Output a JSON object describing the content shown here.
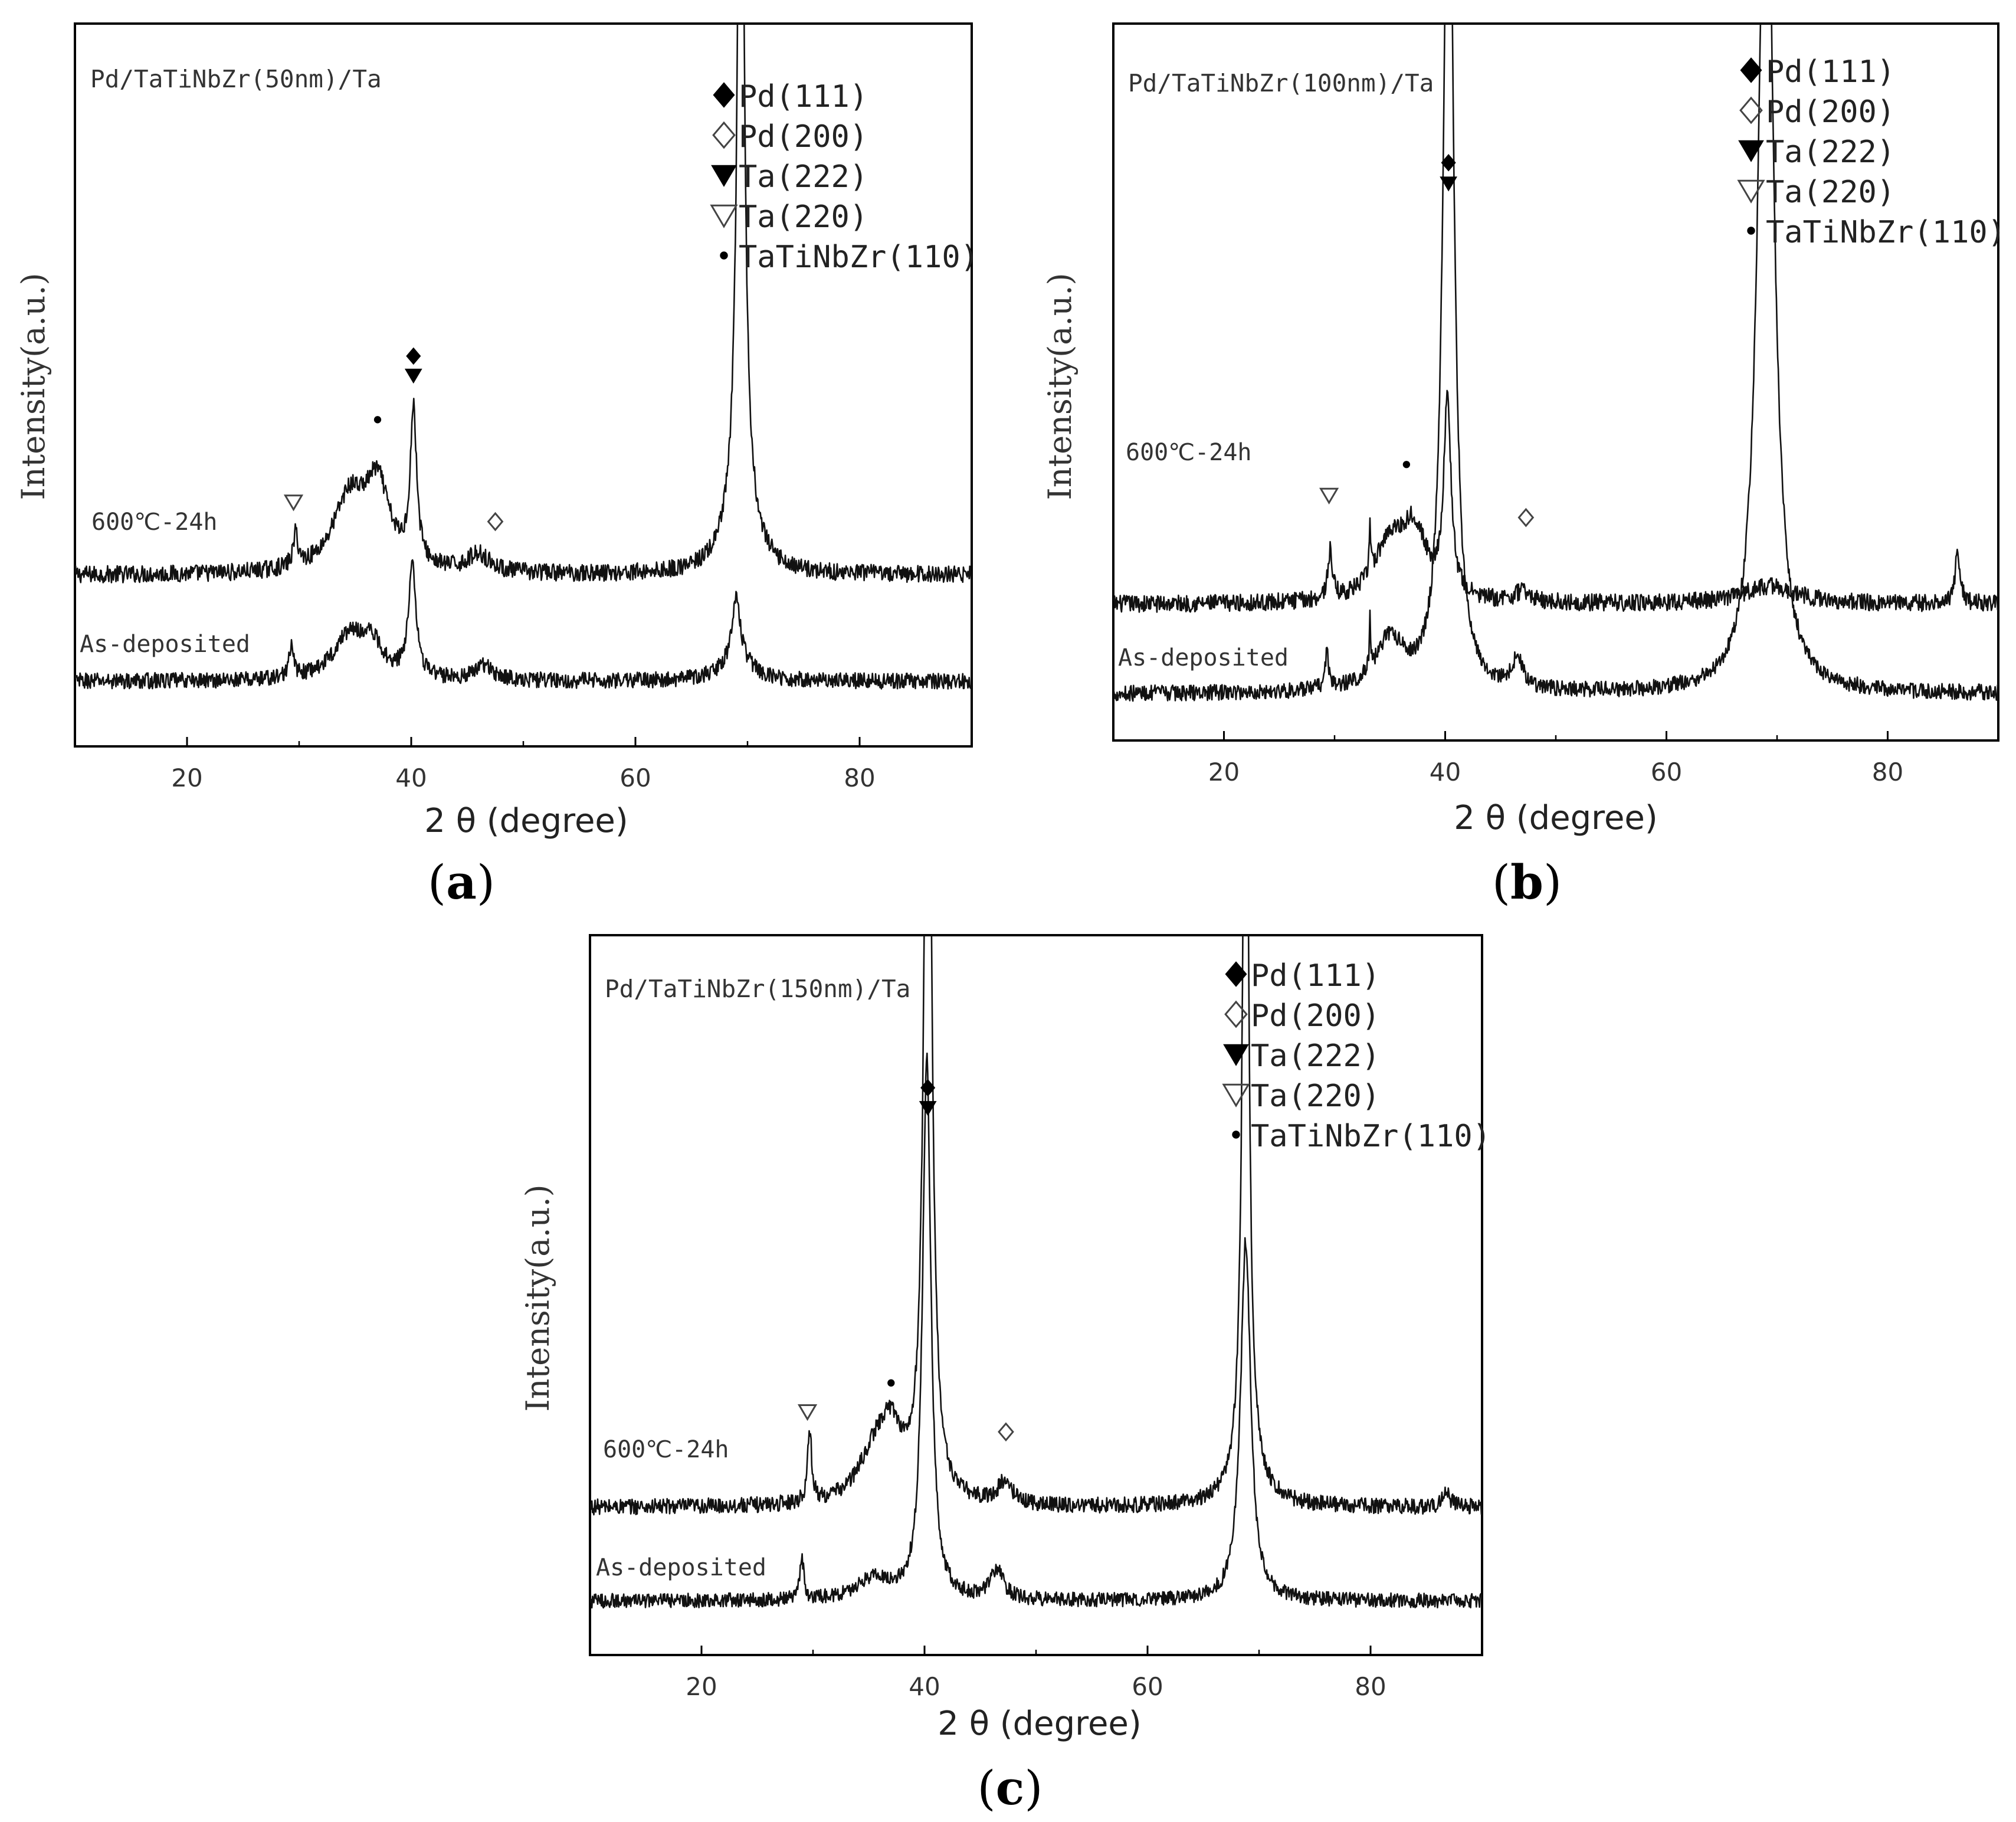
{
  "figure": {
    "legend_entries": [
      {
        "symbol": "filled-diamond",
        "label": "Pd(111)"
      },
      {
        "symbol": "open-diamond",
        "label": "Pd(200)"
      },
      {
        "symbol": "filled-triangle-down",
        "label": "Ta(222)"
      },
      {
        "symbol": "open-triangle-down",
        "label": "Ta(220)"
      },
      {
        "symbol": "dot",
        "label": "TaTiNbZr(110)"
      }
    ]
  },
  "chart_data": [
    {
      "panel": "a",
      "type": "line",
      "caption_letter": "a",
      "title": "Pd/TaTiNbZr(50nm)/Ta",
      "xlabel": "2 θ (degree)",
      "ylabel": "Intensity(a.u.)",
      "xlim": [
        10,
        90
      ],
      "xticks": [
        20,
        40,
        60,
        80
      ],
      "series": [
        {
          "name": "600℃-24h",
          "baseline": 0.237,
          "noise": 0.012,
          "peaks": [
            {
              "x": 29.7,
              "h": 0.045,
              "w": 0.25
            },
            {
              "x": 34.5,
              "h": 0.1,
              "w": 1.8
            },
            {
              "x": 37.0,
              "h": 0.11,
              "w": 1.3
            },
            {
              "x": 40.2,
              "h": 0.21,
              "w": 0.35
            },
            {
              "x": 46.0,
              "h": 0.025,
              "w": 1.2
            },
            {
              "x": 69.4,
              "h": 1.2,
              "w": 0.33
            },
            {
              "x": 69.4,
              "h": 0.1,
              "w": 1.4
            }
          ]
        },
        {
          "name": "As-deposited",
          "baseline": 0.09,
          "noise": 0.011,
          "peaks": [
            {
              "x": 29.3,
              "h": 0.04,
              "w": 0.25
            },
            {
              "x": 34.5,
              "h": 0.06,
              "w": 1.8
            },
            {
              "x": 36.5,
              "h": 0.04,
              "w": 1.2
            },
            {
              "x": 40.1,
              "h": 0.16,
              "w": 0.4
            },
            {
              "x": 46.5,
              "h": 0.02,
              "w": 1.0
            },
            {
              "x": 69.0,
              "h": 0.08,
              "w": 0.35
            },
            {
              "x": 69.0,
              "h": 0.04,
              "w": 1.4
            }
          ]
        }
      ],
      "annotations": [
        {
          "symbol": "open-triangle-down",
          "x": 29.5,
          "y": 0.338
        },
        {
          "symbol": "dot",
          "x": 37.0,
          "y": 0.452
        },
        {
          "symbol": "filled-diamond",
          "x": 40.2,
          "y": 0.54
        },
        {
          "symbol": "filled-triangle-down",
          "x": 40.2,
          "y": 0.513
        },
        {
          "symbol": "open-diamond",
          "x": 47.5,
          "y": 0.311
        }
      ]
    },
    {
      "panel": "b",
      "type": "line",
      "caption_letter": "b",
      "title": "Pd/TaTiNbZr(100nm)/Ta",
      "xlabel": "2 θ (degree)",
      "ylabel": "Intensity(a.u.)",
      "xlim": [
        10,
        90
      ],
      "xticks": [
        20,
        40,
        60,
        80
      ],
      "series": [
        {
          "name": "600℃-24h",
          "baseline": 0.19,
          "noise": 0.012,
          "peaks": [
            {
              "x": 29.6,
              "h": 0.065,
              "w": 0.25
            },
            {
              "x": 33.2,
              "h": 0.08,
              "w": 0.07
            },
            {
              "x": 35.0,
              "h": 0.08,
              "w": 1.7
            },
            {
              "x": 37.2,
              "h": 0.09,
              "w": 1.3
            },
            {
              "x": 40.2,
              "h": 0.27,
              "w": 0.4
            },
            {
              "x": 47.0,
              "h": 0.015,
              "w": 0.8
            },
            {
              "x": 69.3,
              "h": 0.025,
              "w": 3.0
            },
            {
              "x": 86.3,
              "h": 0.065,
              "w": 0.3
            }
          ]
        },
        {
          "name": "As-deposited",
          "baseline": 0.065,
          "noise": 0.011,
          "peaks": [
            {
              "x": 29.3,
              "h": 0.05,
              "w": 0.2
            },
            {
              "x": 33.2,
              "h": 0.07,
              "w": 0.07
            },
            {
              "x": 35.0,
              "h": 0.07,
              "w": 1.6
            },
            {
              "x": 40.3,
              "h": 1.3,
              "w": 0.55
            },
            {
              "x": 46.5,
              "h": 0.04,
              "w": 0.6
            },
            {
              "x": 69.0,
              "h": 1.3,
              "w": 0.8
            }
          ]
        }
      ],
      "annotations": [
        {
          "symbol": "open-triangle-down",
          "x": 29.5,
          "y": 0.342
        },
        {
          "symbol": "dot",
          "x": 36.5,
          "y": 0.385
        },
        {
          "symbol": "filled-diamond",
          "x": 40.3,
          "y": 0.806
        },
        {
          "symbol": "filled-triangle-down",
          "x": 40.3,
          "y": 0.777
        },
        {
          "symbol": "open-diamond",
          "x": 47.3,
          "y": 0.311
        }
      ]
    },
    {
      "panel": "c",
      "type": "line",
      "caption_letter": "c",
      "title": "Pd/TaTiNbZr(150nm)/Ta",
      "xlabel": "2 θ (degree)",
      "ylabel": "Intensity(a.u.)",
      "xlim": [
        10,
        90
      ],
      "xticks": [
        20,
        40,
        60,
        80
      ],
      "series": [
        {
          "name": "600℃-24h",
          "baseline": 0.205,
          "noise": 0.011,
          "peaks": [
            {
              "x": 29.7,
              "h": 0.1,
              "w": 0.22
            },
            {
              "x": 35.5,
              "h": 0.06,
              "w": 1.8
            },
            {
              "x": 37.0,
              "h": 0.085,
              "w": 1.3
            },
            {
              "x": 40.3,
              "h": 1.3,
              "w": 0.4
            },
            {
              "x": 47.2,
              "h": 0.03,
              "w": 0.8
            },
            {
              "x": 68.8,
              "h": 1.3,
              "w": 0.3
            },
            {
              "x": 69.0,
              "h": 0.05,
              "w": 1.6
            },
            {
              "x": 86.8,
              "h": 0.02,
              "w": 0.4
            }
          ]
        },
        {
          "name": "As-deposited",
          "baseline": 0.075,
          "noise": 0.01,
          "peaks": [
            {
              "x": 29.0,
              "h": 0.06,
              "w": 0.2
            },
            {
              "x": 35.5,
              "h": 0.03,
              "w": 1.8
            },
            {
              "x": 40.2,
              "h": 0.75,
              "w": 0.45
            },
            {
              "x": 46.5,
              "h": 0.04,
              "w": 0.7
            },
            {
              "x": 68.8,
              "h": 0.5,
              "w": 0.55
            }
          ]
        }
      ],
      "annotations": [
        {
          "symbol": "open-triangle-down",
          "x": 29.5,
          "y": 0.338
        },
        {
          "symbol": "dot",
          "x": 37.0,
          "y": 0.378
        },
        {
          "symbol": "filled-diamond",
          "x": 40.3,
          "y": 0.788
        },
        {
          "symbol": "filled-triangle-down",
          "x": 40.3,
          "y": 0.76
        },
        {
          "symbol": "open-diamond",
          "x": 47.3,
          "y": 0.31
        }
      ]
    }
  ]
}
